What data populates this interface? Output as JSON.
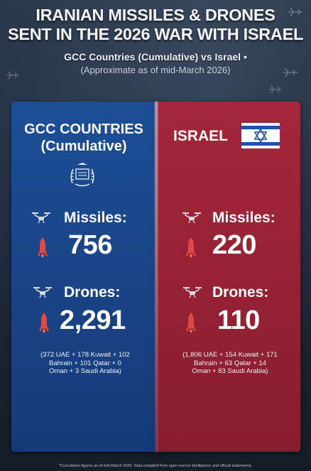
{
  "header": {
    "title_line1": "IRANIAN MISSILES & DRONES",
    "title_line2": "SENT IN THE 2026 WAR WITH ISRAEL",
    "subtitle": "GCC Countries (Cumulative) vs Israel •",
    "note": "(Approximate as of mid-March 2026)"
  },
  "gcc": {
    "title_line1": "GCC COUNTRIES",
    "title_line2": "(Cumulative)",
    "missiles_label": "Missiles:",
    "missiles_value": "756",
    "drones_label": "Drones:",
    "drones_value": "2,291",
    "breakdown_line1": "(372 UAE + 178 Kuwait + 102",
    "breakdown_line2": "Bahrain + 101 Qatar + 0",
    "breakdown_line3": "Oman + 3 Saudi Arabia)",
    "color": "#1a4488"
  },
  "israel": {
    "title": "ISRAEL",
    "missiles_label": "Missiles:",
    "missiles_value": "220",
    "drones_label": "Drones:",
    "drones_value": "110",
    "breakdown_line1": "(1,806 UAE + 154 Kuwait + 171",
    "breakdown_line2": "Bahrain + 63 Qatar + 14",
    "breakdown_line3": "Oman + 83 Saudi Arabia)",
    "color": "#962234"
  },
  "icons": {
    "drone": "drone-icon",
    "missile": "missile-icon",
    "emblem": "gcc-emblem",
    "flag": "israel-flag",
    "plane": "jet-icon"
  },
  "footer": {
    "text": "*Cumulative figures as of mid-March 2026. Data compiled from open-source intelligence and official statements."
  }
}
